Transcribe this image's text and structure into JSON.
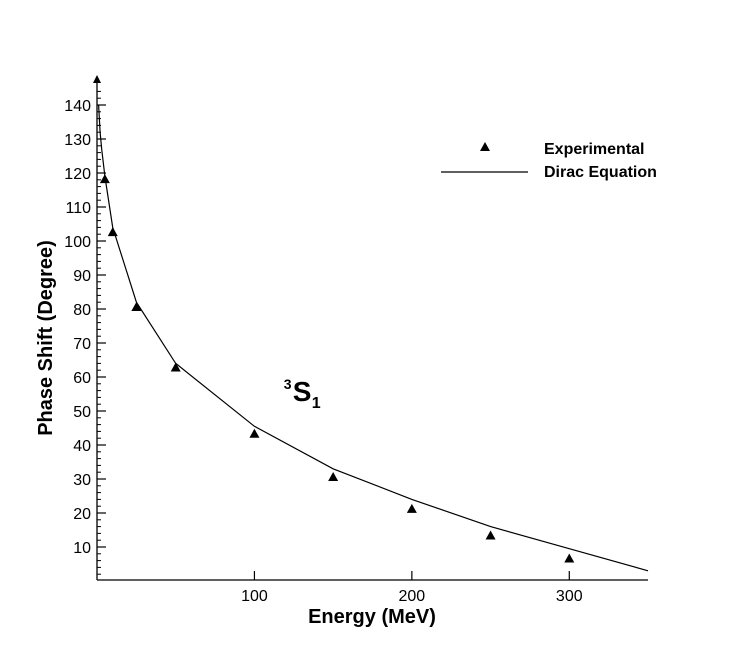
{
  "chart_data": {
    "type": "scatter",
    "title": "",
    "xlabel": "Energy (MeV)",
    "ylabel": "Phase Shift (Degree)",
    "xlim": [
      0,
      350
    ],
    "ylim": [
      0,
      145
    ],
    "x_ticks": [
      100,
      200,
      300
    ],
    "y_ticks": [
      10,
      20,
      30,
      40,
      50,
      60,
      70,
      80,
      90,
      100,
      110,
      120,
      130,
      140
    ],
    "grid": false,
    "legend_position": "top-right",
    "annotation": {
      "superscript": "3",
      "main": "S",
      "subscript": "1",
      "x": 125,
      "y": 53
    },
    "series": [
      {
        "name": "Experimental",
        "type": "scatter",
        "marker": "triangle",
        "x": [
          5,
          10,
          25,
          50,
          100,
          150,
          200,
          250,
          300
        ],
        "y": [
          118.2,
          102.6,
          80.6,
          62.8,
          43.3,
          30.6,
          21.2,
          13.4,
          6.6
        ]
      },
      {
        "name": "Dirac Equation",
        "type": "line",
        "x": [
          1,
          2,
          3,
          5,
          10,
          25,
          50,
          100,
          150,
          200,
          250,
          300,
          350
        ],
        "y": [
          140,
          132,
          127,
          119,
          104,
          82,
          64,
          45.5,
          33,
          24,
          16,
          9.5,
          3
        ]
      }
    ]
  }
}
